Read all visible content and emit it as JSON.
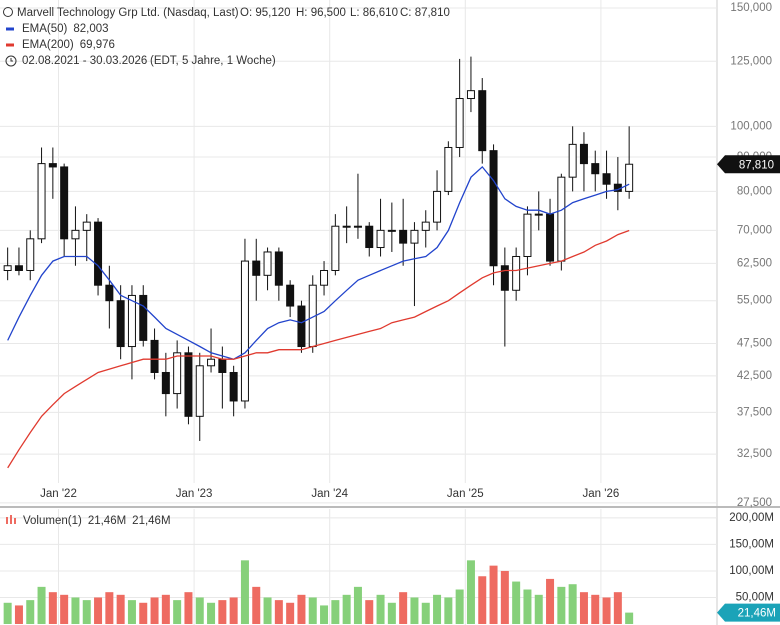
{
  "header": {
    "title": "Marvell Technology Grp Ltd. (Nasdaq, Last)",
    "ohlc": [
      "O: 95,120",
      "H: 96,500",
      "L: 86,610",
      "C: 87,810"
    ],
    "range": "02.08.2021 - 30.03.2026",
    "range_note": "(EDT, 5 Jahre, 1 Woche)"
  },
  "chart_data": {
    "type": "candlestick",
    "log_scale": true,
    "grid": true,
    "candle_color": "#111111",
    "x": [
      "2021-08",
      "2021-09",
      "2021-10",
      "2021-11",
      "2021-12",
      "2022-01",
      "2022-02",
      "2022-03",
      "2022-04",
      "2022-05",
      "2022-06",
      "2022-07",
      "2022-08",
      "2022-09",
      "2022-10",
      "2022-11",
      "2022-12",
      "2023-01",
      "2023-02",
      "2023-03",
      "2023-04",
      "2023-05",
      "2023-06",
      "2023-07",
      "2023-08",
      "2023-09",
      "2023-10",
      "2023-11",
      "2023-12",
      "2024-01",
      "2024-02",
      "2024-03",
      "2024-04",
      "2024-05",
      "2024-06",
      "2024-07",
      "2024-08",
      "2024-09",
      "2024-10",
      "2024-11",
      "2024-12",
      "2025-01",
      "2025-02",
      "2025-03",
      "2025-04",
      "2025-05",
      "2025-06",
      "2025-07",
      "2025-08",
      "2025-09",
      "2025-10",
      "2025-11",
      "2025-12",
      "2026-01",
      "2026-02",
      "2026-03"
    ],
    "open": [
      61000,
      62000,
      61000,
      68000,
      88000,
      87000,
      68000,
      70000,
      72000,
      58000,
      55000,
      47000,
      56000,
      48000,
      43000,
      40000,
      46000,
      37000,
      44000,
      45000,
      43000,
      39000,
      63000,
      60000,
      65000,
      58000,
      54000,
      47000,
      58000,
      61000,
      71000,
      71000,
      71000,
      66000,
      70000,
      70000,
      67000,
      70000,
      72000,
      80000,
      93000,
      110000,
      113000,
      92000,
      62000,
      57000,
      64000,
      74000,
      74000,
      63000,
      84000,
      94000,
      88000,
      85000,
      82000,
      80000
    ],
    "high": [
      66000,
      66000,
      70000,
      93000,
      93000,
      88000,
      76000,
      74000,
      73000,
      62000,
      58000,
      58000,
      58000,
      50000,
      46000,
      48000,
      47000,
      46000,
      50000,
      47000,
      44000,
      68000,
      68000,
      66000,
      66000,
      59000,
      55000,
      60000,
      63000,
      74000,
      76000,
      85000,
      72000,
      78000,
      77000,
      78000,
      72000,
      75000,
      86000,
      95000,
      126000,
      127000,
      118000,
      94000,
      66000,
      66000,
      76000,
      80000,
      78000,
      85000,
      100000,
      98000,
      92000,
      92000,
      90000,
      100000
    ],
    "low": [
      59000,
      60000,
      59000,
      67000,
      78000,
      64000,
      62000,
      63000,
      56000,
      50000,
      45000,
      42000,
      47000,
      42000,
      37000,
      38000,
      36000,
      34000,
      43000,
      38000,
      37000,
      38000,
      55000,
      57000,
      55000,
      52000,
      46000,
      46000,
      56000,
      60000,
      67000,
      68000,
      64000,
      64000,
      65000,
      62000,
      54000,
      66000,
      70000,
      79000,
      90000,
      105000,
      88000,
      58000,
      47000,
      55000,
      60000,
      70000,
      62000,
      61000,
      80000,
      80000,
      80000,
      78000,
      75000,
      78000
    ],
    "close": [
      62000,
      61000,
      68000,
      88000,
      87000,
      68000,
      70000,
      72000,
      58000,
      55000,
      47000,
      56000,
      48000,
      43000,
      40000,
      46000,
      37000,
      44000,
      45000,
      43000,
      39000,
      63000,
      60000,
      65000,
      58000,
      54000,
      47000,
      58000,
      61000,
      71000,
      71000,
      71000,
      66000,
      70000,
      70000,
      67000,
      70000,
      72000,
      80000,
      93000,
      110000,
      113000,
      92000,
      62000,
      57000,
      64000,
      74000,
      74000,
      63000,
      84000,
      94000,
      88000,
      85000,
      82000,
      80000,
      87810
    ],
    "last_label": "87,810",
    "ema": [
      {
        "name": "EMA(50)",
        "color": "#2244cc",
        "last_label": "82,003",
        "values": [
          48000,
          52000,
          56000,
          60000,
          63000,
          64000,
          64000,
          64000,
          62000,
          59000,
          56000,
          55000,
          54000,
          52000,
          50000,
          49000,
          48000,
          47000,
          46000,
          45500,
          45000,
          46000,
          48000,
          50000,
          51000,
          51500,
          51000,
          52000,
          53000,
          55000,
          57000,
          59000,
          60000,
          61000,
          62000,
          63000,
          63500,
          64000,
          66000,
          70000,
          77000,
          84000,
          87000,
          83000,
          78000,
          76000,
          75000,
          75000,
          74000,
          75000,
          77000,
          78000,
          79000,
          80000,
          80500,
          82003
        ]
      },
      {
        "name": "EMA(200)",
        "color": "#e03a2f",
        "last_label": "69,976",
        "values": [
          31000,
          33000,
          35000,
          37000,
          38500,
          40000,
          41000,
          42000,
          43000,
          43500,
          44000,
          44500,
          45000,
          45000,
          45000,
          45500,
          45500,
          45500,
          45500,
          45000,
          45000,
          45500,
          46000,
          46000,
          46500,
          46500,
          46500,
          47000,
          47500,
          48000,
          48500,
          49000,
          49500,
          50000,
          51000,
          51500,
          52000,
          53000,
          54000,
          55000,
          56500,
          58000,
          59500,
          60500,
          61000,
          61000,
          61500,
          62000,
          62500,
          63000,
          64000,
          65000,
          66500,
          67500,
          69000,
          69976
        ]
      }
    ],
    "ylim": [
      27300,
      154200
    ],
    "yticks": [
      {
        "value": 27500,
        "label": "27,500"
      },
      {
        "value": 32500,
        "label": "32,500"
      },
      {
        "value": 37500,
        "label": "37,500"
      },
      {
        "value": 42500,
        "label": "42,500"
      },
      {
        "value": 47500,
        "label": "47,500"
      },
      {
        "value": 55000,
        "label": "55,000"
      },
      {
        "value": 62500,
        "label": "62,500"
      },
      {
        "value": 70000,
        "label": "70,000"
      },
      {
        "value": 80000,
        "label": "80,000"
      },
      {
        "value": 90000,
        "label": "90,000"
      },
      {
        "value": 100000,
        "label": "100,000"
      },
      {
        "value": 125000,
        "label": "125,000"
      },
      {
        "value": 150000,
        "label": "150,000"
      }
    ],
    "xticks": [
      {
        "value": "2022-01",
        "label": "Jan '22"
      },
      {
        "value": "2023-01",
        "label": "Jan '23"
      },
      {
        "value": "2024-01",
        "label": "Jan '24"
      },
      {
        "value": "2025-01",
        "label": "Jan '25"
      },
      {
        "value": "2026-01",
        "label": "Jan '26"
      }
    ],
    "volume": {
      "name": "Volumen(1)",
      "last_label": "21,46M",
      "up_color": "#86d07a",
      "down_color": "#ee6b61",
      "values": [
        40,
        35,
        45,
        70,
        60,
        55,
        50,
        45,
        50,
        60,
        55,
        45,
        40,
        50,
        55,
        45,
        60,
        50,
        40,
        45,
        50,
        120,
        70,
        50,
        45,
        40,
        55,
        50,
        35,
        45,
        55,
        70,
        45,
        55,
        40,
        60,
        50,
        40,
        55,
        50,
        65,
        120,
        90,
        110,
        100,
        80,
        65,
        55,
        85,
        70,
        75,
        60,
        55,
        50,
        60,
        21.46
      ],
      "ylim": [
        0,
        213
      ],
      "yticks": [
        {
          "value": 50,
          "label": "50,00M"
        },
        {
          "value": 100,
          "label": "100,00M"
        },
        {
          "value": 150,
          "label": "150,00M"
        },
        {
          "value": 200,
          "label": "200,00M"
        }
      ]
    }
  }
}
